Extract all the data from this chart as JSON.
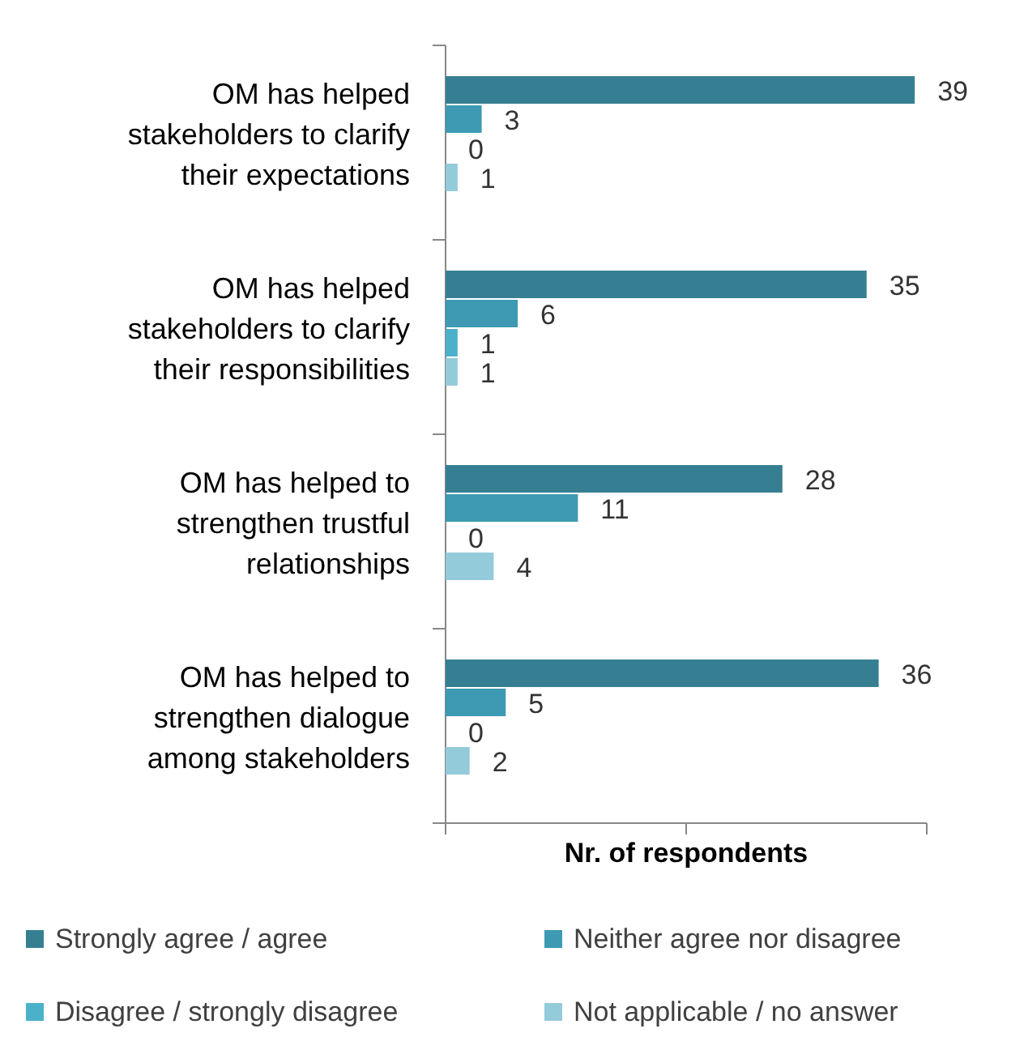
{
  "chart_data": {
    "type": "bar",
    "orientation": "horizontal",
    "xlabel": "Nr. of respondents",
    "categories": [
      "OM has helped stakeholders to clarify their expectations",
      "OM has helped stakeholders to clarify their responsibilities",
      "OM has helped to strengthen trustful relationships",
      "OM has helped to strengthen dialogue among stakeholders"
    ],
    "series": [
      {
        "name": "Strongly agree / agree",
        "color": "#367f93",
        "values": [
          39,
          35,
          28,
          36
        ]
      },
      {
        "name": "Neither agree nor disagree",
        "color": "#3d9ab2",
        "values": [
          3,
          6,
          11,
          5
        ]
      },
      {
        "name": "Disagree / strongly disagree",
        "color": "#4bb1ca",
        "values": [
          0,
          1,
          0,
          0
        ]
      },
      {
        "name": "Not applicable / no answer",
        "color": "#93cbdb",
        "values": [
          1,
          1,
          4,
          2
        ]
      }
    ],
    "xlim": [
      0,
      40
    ],
    "xticks": [
      {
        "value": 0,
        "label": null
      },
      {
        "value": 20,
        "label": null
      },
      {
        "value": 40,
        "label": null
      }
    ],
    "data_labels": true,
    "legend": "bottom",
    "grid": false
  }
}
